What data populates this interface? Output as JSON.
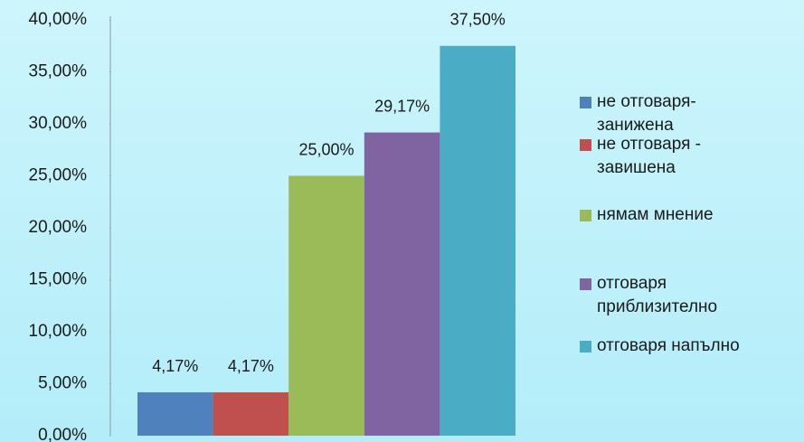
{
  "chart_data": {
    "type": "bar",
    "categories": [
      null
    ],
    "series": [
      {
        "name": "не отговаря-занижена",
        "color": "#4f81bd",
        "values": [
          4.17
        ],
        "value_labels": [
          "4,17%"
        ]
      },
      {
        "name": "не отговаря - завишена",
        "color": "#c0504d",
        "values": [
          4.17
        ],
        "value_labels": [
          "4,17%"
        ]
      },
      {
        "name": "нямам мнение",
        "color": "#9bbb59",
        "values": [
          25
        ],
        "value_labels": [
          "25,00%"
        ]
      },
      {
        "name": "отговаря приблизително",
        "color": "#8064a2",
        "values": [
          29.17
        ],
        "value_labels": [
          "29,17%"
        ]
      },
      {
        "name": "отговаря напълно",
        "color": "#4bacc6",
        "values": [
          37.5
        ],
        "value_labels": [
          "37,50%"
        ]
      }
    ],
    "ylim": [
      0,
      40
    ],
    "yticks": [
      {
        "value": 0,
        "label": "0,00%"
      },
      {
        "value": 5,
        "label": "5,00%"
      },
      {
        "value": 10,
        "label": "10,00%"
      },
      {
        "value": 15,
        "label": "15,00%"
      },
      {
        "value": 20,
        "label": "20,00%"
      },
      {
        "value": 25,
        "label": "25,00%"
      },
      {
        "value": 30,
        "label": "30,00%"
      },
      {
        "value": 35,
        "label": "35,00%"
      },
      {
        "value": 40,
        "label": "40,00%"
      }
    ],
    "legend": "right"
  }
}
